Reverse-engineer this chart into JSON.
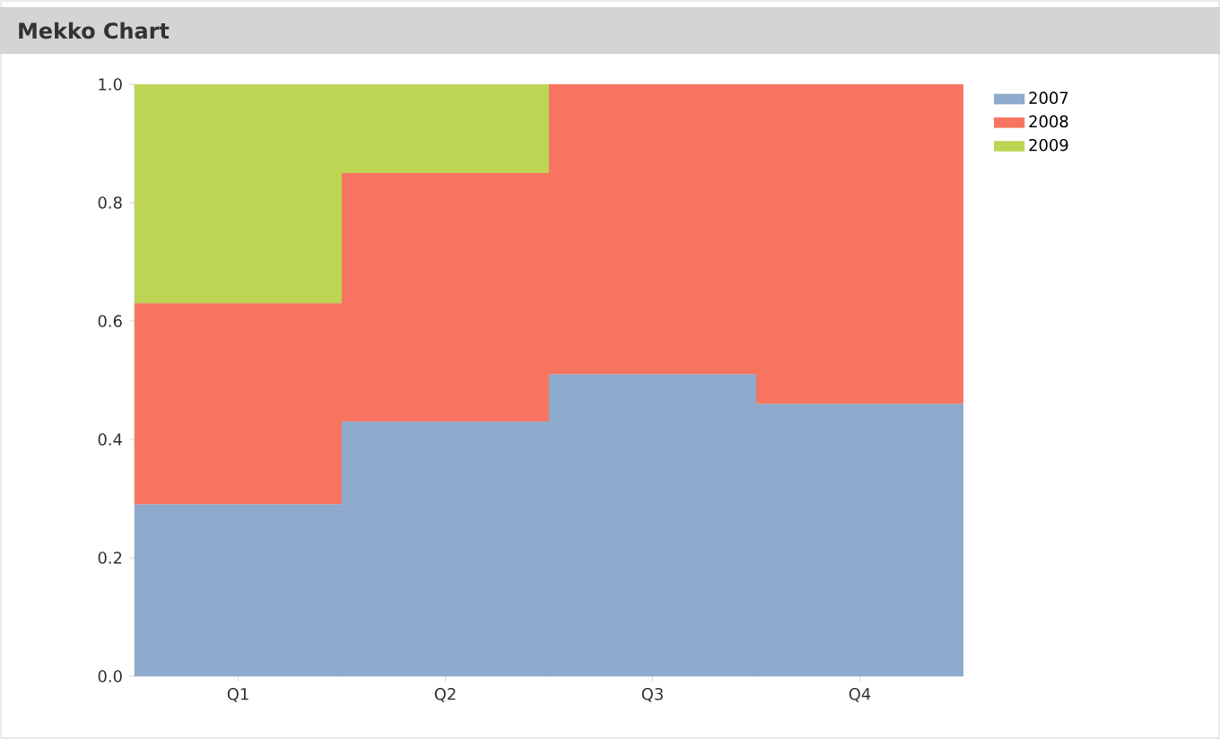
{
  "chart_data": {
    "type": "bar",
    "title": "Mekko Chart",
    "stacked": true,
    "categories": [
      "Q1",
      "Q2",
      "Q3",
      "Q4"
    ],
    "series": [
      {
        "name": "2007",
        "color": "#8eaacc",
        "values": [
          0.29,
          0.43,
          0.51,
          0.46
        ]
      },
      {
        "name": "2008",
        "color": "#f77560",
        "values": [
          0.34,
          0.42,
          0.49,
          0.54
        ]
      },
      {
        "name": "2009",
        "color": "#bcd654",
        "values": [
          0.37,
          0.15,
          0,
          0
        ]
      }
    ],
    "ylim": [
      0,
      1
    ],
    "yticks": [
      {
        "value": 0,
        "label": "0.0"
      },
      {
        "value": 0.2,
        "label": "0.2"
      },
      {
        "value": 0.4,
        "label": "0.4"
      },
      {
        "value": 0.6,
        "label": "0.6"
      },
      {
        "value": 0.8,
        "label": "0.8"
      },
      {
        "value": 1,
        "label": "1.0"
      }
    ],
    "grid": false,
    "legend": "top right"
  }
}
